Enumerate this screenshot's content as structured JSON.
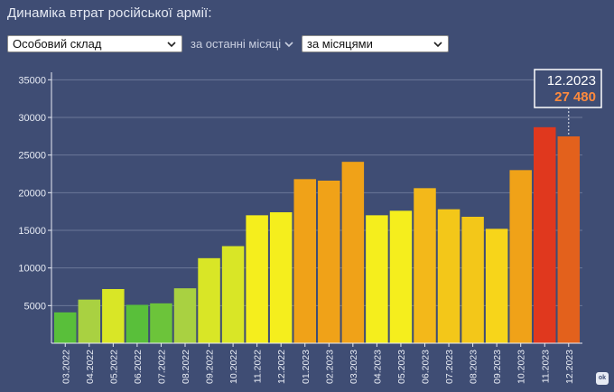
{
  "header": {
    "title": "Динаміка втрат російської армії:"
  },
  "filters": {
    "category": "Особовий склад",
    "period": "за останні місяці",
    "grouping": "за місяцями"
  },
  "tooltip": {
    "label": "12.2023",
    "value": "27 480"
  },
  "colors": {
    "background": "#3f4d74",
    "tooltip_value": "#ff8a3d"
  },
  "chart_data": {
    "type": "bar",
    "categories": [
      "03.2022",
      "04.2022",
      "05.2022",
      "06.2022",
      "07.2022",
      "08.2022",
      "09.2022",
      "10.2022",
      "11.2022",
      "12.2022",
      "01.2023",
      "02.2023",
      "03.2023",
      "04.2023",
      "05.2023",
      "06.2023",
      "07.2023",
      "08.2023",
      "09.2023",
      "10.2023",
      "11.2023",
      "12.2023"
    ],
    "values": [
      4100,
      5800,
      7200,
      5100,
      5300,
      7300,
      11300,
      12900,
      17000,
      17400,
      21800,
      21600,
      24100,
      17000,
      17600,
      20600,
      17800,
      16800,
      15200,
      23000,
      28700,
      27480
    ],
    "colors": [
      "#59bf3a",
      "#a9d141",
      "#d9e626",
      "#59bf3a",
      "#6cc43a",
      "#a9d141",
      "#d9e626",
      "#d9e626",
      "#f5ee1d",
      "#f5ee1d",
      "#f0a218",
      "#f0a218",
      "#f0a218",
      "#f5ee1d",
      "#f5ee1d",
      "#f3b81a",
      "#f3c719",
      "#f3c719",
      "#f7d51a",
      "#f0a218",
      "#e0381e",
      "#e3611c"
    ],
    "yticks": [
      5000,
      10000,
      15000,
      20000,
      25000,
      30000,
      35000
    ],
    "ylim": [
      0,
      36000
    ],
    "grid": true,
    "highlighted": "12.2023"
  }
}
